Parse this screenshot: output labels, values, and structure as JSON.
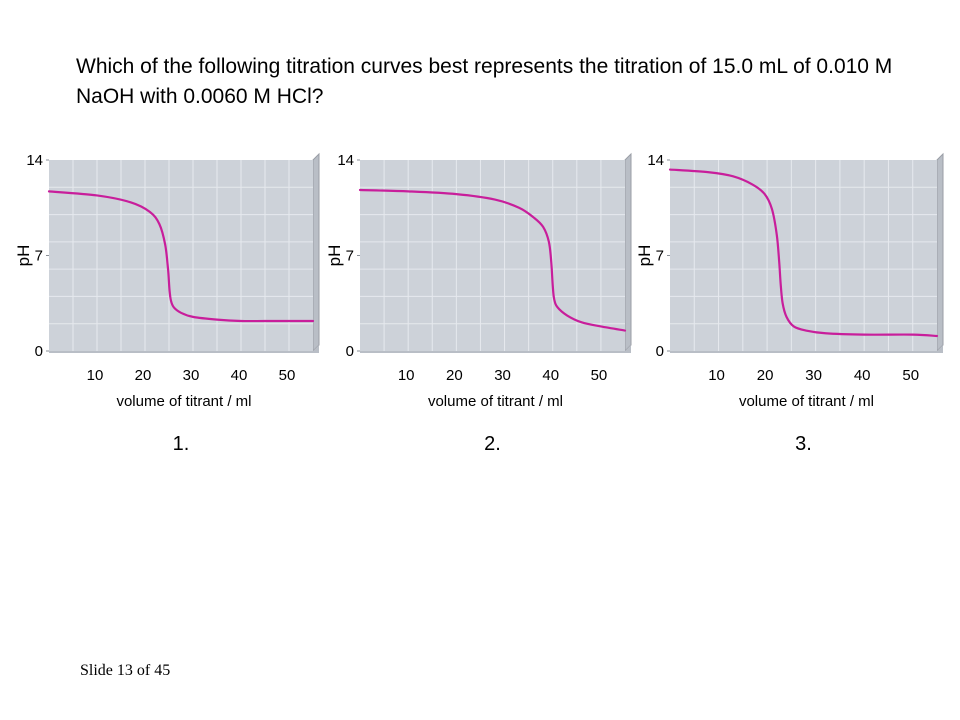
{
  "question": "Which of the following titration curves best represents the titration of 15.0 mL of 0.010 M NaOH with 0.0060 M HCl?",
  "footer": "Slide 13 of 45",
  "colors": {
    "plot_background": "#cdd2d9",
    "plot_grid": "#e6e9ee",
    "frame_shadow": "#9a9ea6",
    "curve": "#c81e9b"
  },
  "chart_data": [
    {
      "type": "line",
      "option_label": "1.",
      "xlabel": "volume of titrant / ml",
      "ylabel": "pH",
      "xticks": [
        10,
        20,
        30,
        40,
        50
      ],
      "yticks": [
        0,
        7,
        14
      ],
      "xlim": [
        0,
        55
      ],
      "ylim": [
        0,
        14
      ],
      "grid": true,
      "series": [
        {
          "x": [
            0,
            10,
            17,
            21,
            23,
            24.2,
            24.8,
            25.1,
            25.4,
            26,
            27.5,
            30,
            35,
            40,
            45,
            50,
            55
          ],
          "y": [
            11.7,
            11.4,
            10.9,
            10.2,
            9.3,
            7.8,
            6.0,
            4.5,
            3.7,
            3.2,
            2.8,
            2.5,
            2.3,
            2.2,
            2.2,
            2.2,
            2.2
          ]
        }
      ]
    },
    {
      "type": "line",
      "option_label": "2.",
      "xlabel": "volume of titrant / ml",
      "ylabel": "pH",
      "xticks": [
        10,
        20,
        30,
        40,
        50
      ],
      "yticks": [
        0,
        7,
        14
      ],
      "xlim": [
        0,
        55
      ],
      "ylim": [
        0,
        14
      ],
      "grid": true,
      "series": [
        {
          "x": [
            0,
            10,
            20,
            28,
            33,
            36,
            38,
            39.2,
            39.7,
            40,
            40.3,
            41,
            43,
            46,
            50,
            55
          ],
          "y": [
            11.8,
            11.7,
            11.5,
            11.1,
            10.5,
            9.8,
            9.1,
            8.0,
            6.5,
            4.8,
            3.8,
            3.2,
            2.6,
            2.1,
            1.8,
            1.5
          ]
        }
      ]
    },
    {
      "type": "line",
      "option_label": "3.",
      "xlabel": "volume of titrant / ml",
      "ylabel": "pH",
      "xticks": [
        10,
        20,
        30,
        40,
        50
      ],
      "yticks": [
        0,
        7,
        14
      ],
      "xlim": [
        0,
        55
      ],
      "ylim": [
        0,
        14
      ],
      "grid": true,
      "series": [
        {
          "x": [
            0,
            8,
            13,
            17,
            19.5,
            21,
            22,
            22.5,
            22.8,
            23.2,
            24,
            25.5,
            28,
            32,
            40,
            50,
            55
          ],
          "y": [
            13.3,
            13.1,
            12.8,
            12.2,
            11.5,
            10.4,
            8.5,
            6.5,
            4.9,
            3.5,
            2.5,
            1.8,
            1.5,
            1.3,
            1.2,
            1.2,
            1.1
          ]
        }
      ]
    }
  ]
}
